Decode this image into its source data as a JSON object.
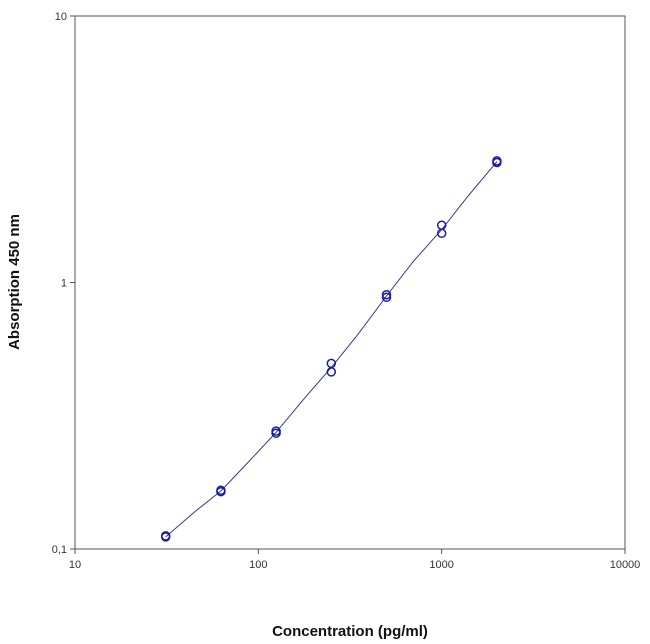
{
  "chart_data": {
    "type": "scatter",
    "title": "",
    "xlabel": "Concentration (pg/ml)",
    "ylabel": "Absorption 450 nm",
    "xscale": "log",
    "yscale": "log",
    "xlim": [
      10,
      10000
    ],
    "ylim": [
      0.1,
      10
    ],
    "x_ticks": [
      10,
      100,
      1000,
      10000
    ],
    "x_tick_labels": [
      "10",
      "100",
      "1000",
      "10000"
    ],
    "y_ticks": [
      0.1,
      1,
      10
    ],
    "y_tick_labels": [
      "0,1",
      "1",
      "10"
    ],
    "grid": false,
    "legend": "none",
    "marker": "open-circle",
    "color": "#1a1aa6",
    "points": [
      {
        "x": 31.25,
        "y": 0.112
      },
      {
        "x": 31.25,
        "y": 0.111
      },
      {
        "x": 62.5,
        "y": 0.166
      },
      {
        "x": 62.5,
        "y": 0.164
      },
      {
        "x": 125,
        "y": 0.277
      },
      {
        "x": 125,
        "y": 0.272
      },
      {
        "x": 250,
        "y": 0.497
      },
      {
        "x": 250,
        "y": 0.462
      },
      {
        "x": 500,
        "y": 0.9
      },
      {
        "x": 500,
        "y": 0.88
      },
      {
        "x": 1000,
        "y": 1.64
      },
      {
        "x": 1000,
        "y": 1.53
      },
      {
        "x": 2000,
        "y": 2.86
      },
      {
        "x": 2000,
        "y": 2.82
      }
    ],
    "fit_curve": {
      "x": [
        31.25,
        45,
        62.5,
        90,
        125,
        180,
        250,
        350,
        500,
        700,
        1000,
        1400,
        2000
      ],
      "y": [
        0.111,
        0.138,
        0.165,
        0.215,
        0.274,
        0.37,
        0.48,
        0.64,
        0.89,
        1.2,
        1.58,
        2.12,
        2.84
      ]
    }
  }
}
